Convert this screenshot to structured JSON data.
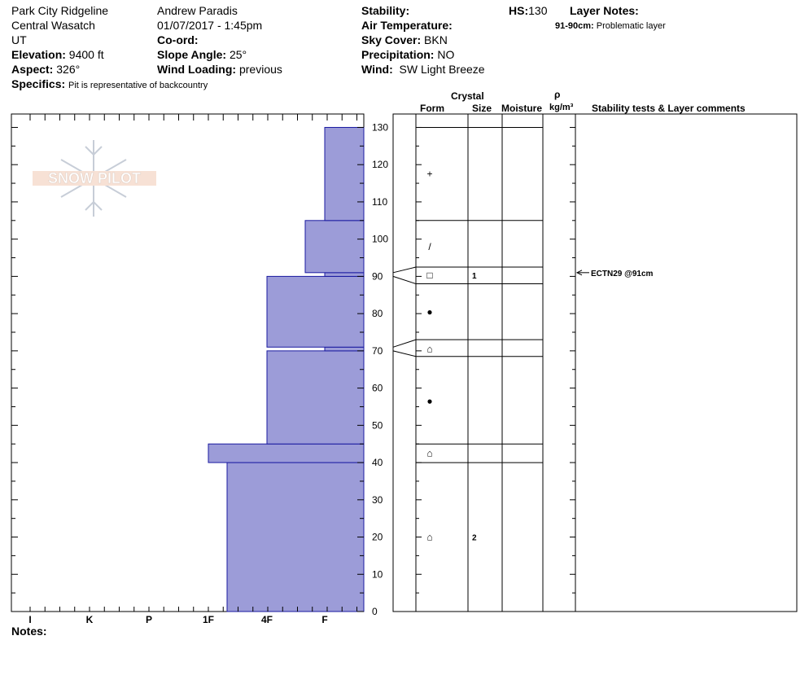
{
  "site": {
    "location": "Park City Ridgeline",
    "range": "Central Wasatch",
    "state": "UT",
    "elevation_label": "Elevation:",
    "elevation": "9400 ft",
    "aspect_label": "Aspect:",
    "aspect": "326°",
    "specifics_label": "Specifics:",
    "specifics": "Pit is representative of backcountry"
  },
  "observer": {
    "name": "Andrew Paradis",
    "datetime": "01/07/2017 - 1:45pm",
    "coord_label": "Co-ord:",
    "coord": "",
    "slope_label": "Slope Angle:",
    "slope": "25°",
    "wind_loading_label": "Wind Loading:",
    "wind_loading": "previous"
  },
  "conditions": {
    "stability_label": "Stability:",
    "stability": "",
    "air_temp_label": "Air Temperature:",
    "air_temp": "",
    "sky_label": "Sky Cover:",
    "sky": "BKN",
    "precip_label": "Precipitation:",
    "precip": "NO",
    "wind_label": "Wind:",
    "wind": "SW Light Breeze"
  },
  "hs": {
    "label": "HS:",
    "value": "130"
  },
  "layer_notes": {
    "label": "Layer Notes:",
    "items": [
      "91-90cm: Problematic layer"
    ]
  },
  "logo": {
    "text": "SNOW PILOT"
  },
  "notes_label": "Notes:",
  "table_headers": {
    "crystal": "Crystal",
    "form": "Form",
    "size": "Size",
    "moisture": "Moisture",
    "rho": "ρ",
    "density_unit": "kg/m³",
    "stability": "Stability tests & Layer comments"
  },
  "colors": {
    "hardness_fill": "#9c9cd8",
    "hardness_stroke": "#1a1aa0"
  },
  "chart_data": {
    "type": "bar",
    "orientation": "horizontal",
    "y_axis": {
      "label": "",
      "range": [
        0,
        130
      ],
      "ticks": [
        0,
        10,
        20,
        30,
        40,
        50,
        60,
        70,
        80,
        90,
        100,
        110,
        120,
        130
      ],
      "unit": "cm"
    },
    "x_axis": {
      "label": "",
      "categories": [
        "I",
        "K",
        "P",
        "1F",
        "4F",
        "F"
      ]
    },
    "hardness_profile": [
      {
        "bottom": 0,
        "top": 40,
        "hardness": "1F-"
      },
      {
        "bottom": 40,
        "top": 45,
        "hardness": "1F"
      },
      {
        "bottom": 45,
        "top": 70,
        "hardness": "4F"
      },
      {
        "bottom": 70,
        "top": 71,
        "hardness": "F"
      },
      {
        "bottom": 71,
        "top": 90,
        "hardness": "4F"
      },
      {
        "bottom": 90,
        "top": 91,
        "hardness": "F"
      },
      {
        "bottom": 91,
        "top": 105,
        "hardness": "4F-"
      },
      {
        "bottom": 105,
        "top": 130,
        "hardness": "F"
      }
    ],
    "layer_boundaries": [
      130,
      105,
      92.5,
      88,
      73,
      68.5,
      45,
      40
    ],
    "crystal_rows": [
      {
        "y": 117.5,
        "form": "+",
        "size": ""
      },
      {
        "y": 98,
        "form": "/",
        "size": ""
      },
      {
        "y": 90.3,
        "form": "□",
        "size": "1"
      },
      {
        "y": 80.5,
        "form": "●",
        "size": ""
      },
      {
        "y": 70.5,
        "form": "⌂",
        "size": ""
      },
      {
        "y": 56.5,
        "form": "●",
        "size": ""
      },
      {
        "y": 42.5,
        "form": "⌂",
        "size": ""
      },
      {
        "y": 20,
        "form": "⌂",
        "size": "2"
      }
    ],
    "stability_tests": [
      {
        "y": 91,
        "text": "ECTN29 @91cm"
      }
    ]
  }
}
